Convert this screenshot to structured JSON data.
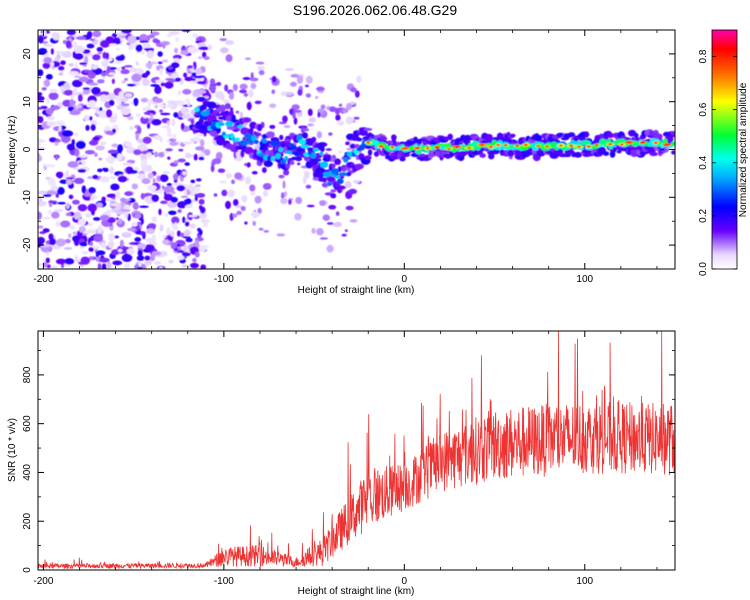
{
  "title": "S196.2026.062.06.48.G29",
  "chart_data": [
    {
      "type": "heatmap",
      "xlabel": "Height of straight line (km)",
      "ylabel": "Frequency (Hz)",
      "xlim": [
        -203,
        150
      ],
      "ylim": [
        -25,
        25
      ],
      "xticks": [
        -200,
        -100,
        0,
        100
      ],
      "yticks": [
        -20,
        -10,
        0,
        10,
        20
      ],
      "colorbar": {
        "label": "Normalized spectral amplitude",
        "range": [
          0,
          0.9
        ],
        "ticks": [
          "0.0",
          "0.2",
          "0.4",
          "0.6",
          "0.8"
        ]
      },
      "ridge": [
        {
          "x": -115,
          "f": 7
        },
        {
          "x": -100,
          "f": 5
        },
        {
          "x": -85,
          "f": 2
        },
        {
          "x": -70,
          "f": -1
        },
        {
          "x": -55,
          "f": 1
        },
        {
          "x": -45,
          "f": -3
        },
        {
          "x": -40,
          "f": -7
        },
        {
          "x": -35,
          "f": -5
        },
        {
          "x": -30,
          "f": -1
        },
        {
          "x": -20,
          "f": 1.5
        },
        {
          "x": -10,
          "f": 0.5
        },
        {
          "x": 0,
          "f": 0
        },
        {
          "x": 25,
          "f": 0.5
        },
        {
          "x": 50,
          "f": 0.8
        },
        {
          "x": 75,
          "f": 0.6
        },
        {
          "x": 100,
          "f": 1
        },
        {
          "x": 125,
          "f": 1.2
        },
        {
          "x": 150,
          "f": 1.3
        }
      ]
    },
    {
      "type": "line",
      "xlabel": "Height of straight line (km)",
      "ylabel": "SNR (10 * v/v)",
      "xlim": [
        -203,
        150
      ],
      "ylim": [
        0,
        980
      ],
      "xticks": [
        -200,
        -100,
        0,
        100
      ],
      "yticks": [
        0,
        200,
        400,
        600,
        800
      ],
      "series": [
        {
          "name": "SNR",
          "color": "#ee3333",
          "envelope": [
            {
              "x": -203,
              "base": 15,
              "spread": 20
            },
            {
              "x": -110,
              "base": 18,
              "spread": 20
            },
            {
              "x": -100,
              "base": 50,
              "spread": 80
            },
            {
              "x": -80,
              "base": 55,
              "spread": 90
            },
            {
              "x": -60,
              "base": 30,
              "spread": 40
            },
            {
              "x": -45,
              "base": 70,
              "spread": 120
            },
            {
              "x": -30,
              "base": 200,
              "spread": 200
            },
            {
              "x": -20,
              "base": 280,
              "spread": 250
            },
            {
              "x": 0,
              "base": 330,
              "spread": 200
            },
            {
              "x": 20,
              "base": 430,
              "spread": 250
            },
            {
              "x": 50,
              "base": 500,
              "spread": 300
            },
            {
              "x": 100,
              "base": 530,
              "spread": 300
            },
            {
              "x": 150,
              "base": 520,
              "spread": 300
            }
          ],
          "peak_max": 980
        }
      ]
    }
  ]
}
